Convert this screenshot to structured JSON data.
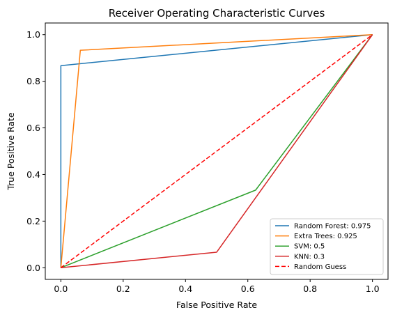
{
  "chart_data": {
    "type": "line",
    "title": "Receiver Operating Characteristic Curves",
    "xlabel": "False Positive Rate",
    "ylabel": "True Positive Rate",
    "xlim": [
      -0.05,
      1.05
    ],
    "ylim": [
      -0.05,
      1.05
    ],
    "xticks": [
      0.0,
      0.2,
      0.4,
      0.6,
      0.8,
      1.0
    ],
    "xtick_labels": [
      "0.0",
      "0.2",
      "0.4",
      "0.6",
      "0.8",
      "1.0"
    ],
    "yticks": [
      0.0,
      0.2,
      0.4,
      0.6,
      0.8,
      1.0
    ],
    "ytick_labels": [
      "0.0",
      "0.2",
      "0.4",
      "0.6",
      "0.8",
      "1.0"
    ],
    "grid": false,
    "legend_position": "lower-right",
    "series": [
      {
        "name": "Random Forest: 0.975",
        "color": "#1f77b4",
        "dash": "solid",
        "x": [
          0.0,
          0.0,
          1.0
        ],
        "y": [
          0.0,
          0.867,
          1.0
        ]
      },
      {
        "name": "Extra Trees: 0.925",
        "color": "#ff7f0e",
        "dash": "solid",
        "x": [
          0.0,
          0.0625,
          1.0
        ],
        "y": [
          0.0,
          0.933,
          1.0
        ]
      },
      {
        "name": "SVM: 0.5",
        "color": "#2ca02c",
        "dash": "solid",
        "x": [
          0.0,
          0.625,
          1.0
        ],
        "y": [
          0.0,
          0.333,
          1.0
        ]
      },
      {
        "name": "KNN: 0.3",
        "color": "#d62728",
        "dash": "solid",
        "x": [
          0.0,
          0.5,
          1.0
        ],
        "y": [
          0.0,
          0.0667,
          1.0
        ]
      },
      {
        "name": "Random Guess",
        "color": "#ff0000",
        "dash": "dashed",
        "x": [
          0.0,
          1.0
        ],
        "y": [
          0.0,
          1.0
        ]
      }
    ]
  }
}
